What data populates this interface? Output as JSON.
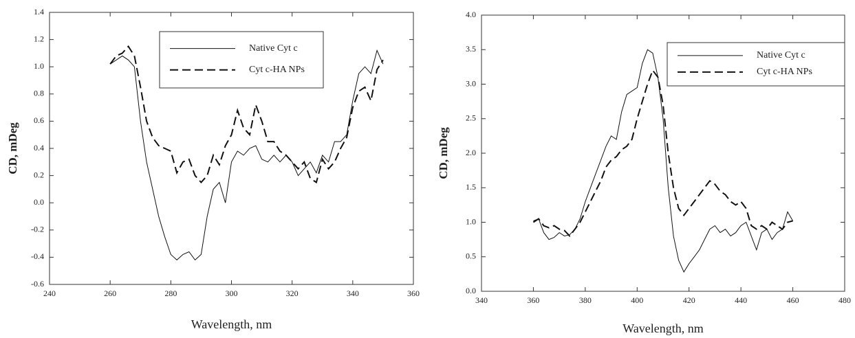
{
  "chart_data": [
    {
      "type": "line",
      "xlabel": "Wavelength, nm",
      "ylabel": "CD, mDeg",
      "xlim": [
        240,
        360
      ],
      "xticks": [
        240,
        260,
        280,
        300,
        320,
        340,
        360
      ],
      "ylim": [
        -0.6,
        1.4
      ],
      "yticks": [
        -0.6,
        -0.4,
        -0.2,
        {
          "value": 0,
          "label": "0.0"
        },
        0.2,
        0.4,
        0.6,
        0.8,
        {
          "value": 1,
          "label": "1.0"
        },
        1.2,
        1.4
      ],
      "x": [
        260,
        262,
        264,
        266,
        268,
        270,
        272,
        274,
        276,
        278,
        280,
        282,
        284,
        286,
        288,
        290,
        292,
        294,
        296,
        298,
        300,
        302,
        304,
        306,
        308,
        310,
        312,
        314,
        316,
        318,
        320,
        322,
        324,
        326,
        328,
        330,
        332,
        334,
        336,
        338,
        340,
        342,
        344,
        346,
        348,
        350
      ],
      "series": [
        {
          "name": "Native Cyt c",
          "color": "#111111",
          "dash": "solid",
          "values": [
            1.02,
            1.05,
            1.08,
            1.05,
            1.0,
            0.6,
            0.3,
            0.1,
            -0.1,
            -0.25,
            -0.38,
            -0.42,
            -0.38,
            -0.36,
            -0.42,
            -0.38,
            -0.1,
            0.1,
            0.15,
            0.0,
            0.3,
            0.38,
            0.35,
            0.4,
            0.42,
            0.32,
            0.3,
            0.35,
            0.3,
            0.35,
            0.3,
            0.2,
            0.25,
            0.3,
            0.22,
            0.35,
            0.3,
            0.45,
            0.45,
            0.5,
            0.75,
            0.95,
            1.0,
            0.95,
            1.12,
            1.02
          ]
        },
        {
          "name": "Cyt c-HA NPs",
          "color": "#111111",
          "dash": "dashed",
          "values": [
            1.02,
            1.08,
            1.1,
            1.15,
            1.08,
            0.85,
            0.6,
            0.48,
            0.42,
            0.4,
            0.38,
            0.22,
            0.3,
            0.32,
            0.2,
            0.15,
            0.2,
            0.35,
            0.28,
            0.42,
            0.5,
            0.68,
            0.55,
            0.5,
            0.72,
            0.6,
            0.45,
            0.45,
            0.38,
            0.35,
            0.3,
            0.25,
            0.3,
            0.18,
            0.15,
            0.32,
            0.25,
            0.3,
            0.4,
            0.48,
            0.7,
            0.82,
            0.85,
            0.75,
            0.98,
            1.05
          ]
        }
      ]
    },
    {
      "type": "line",
      "xlabel": "Wavelength, nm",
      "ylabel": "CD, mDeg",
      "xlim": [
        340,
        480
      ],
      "xticks": [
        340,
        360,
        380,
        400,
        420,
        440,
        460,
        480
      ],
      "ylim": [
        0,
        4
      ],
      "yticks": [
        {
          "value": 0,
          "label": "0.0"
        },
        0.5,
        {
          "value": 1,
          "label": "1.0"
        },
        1.5,
        {
          "value": 2,
          "label": "2.0"
        },
        2.5,
        {
          "value": 3,
          "label": "3.0"
        },
        3.5,
        {
          "value": 4,
          "label": "4.0"
        }
      ],
      "x": [
        360,
        362,
        364,
        366,
        368,
        370,
        372,
        374,
        376,
        378,
        380,
        382,
        384,
        386,
        388,
        390,
        392,
        394,
        396,
        398,
        400,
        402,
        404,
        406,
        408,
        410,
        412,
        414,
        416,
        418,
        420,
        422,
        424,
        426,
        428,
        430,
        432,
        434,
        436,
        438,
        440,
        442,
        444,
        446,
        448,
        450,
        452,
        454,
        456,
        458,
        460
      ],
      "series": [
        {
          "name": "Native Cyt c",
          "color": "#111111",
          "dash": "solid",
          "values": [
            1.02,
            1.05,
            0.85,
            0.75,
            0.78,
            0.85,
            0.8,
            0.82,
            0.9,
            1.05,
            1.3,
            1.5,
            1.7,
            1.9,
            2.1,
            2.25,
            2.2,
            2.6,
            2.85,
            2.9,
            2.95,
            3.3,
            3.5,
            3.45,
            3.1,
            2.5,
            1.5,
            0.8,
            0.45,
            0.28,
            0.4,
            0.5,
            0.6,
            0.75,
            0.9,
            0.95,
            0.85,
            0.9,
            0.8,
            0.85,
            0.95,
            1.0,
            0.8,
            0.6,
            0.85,
            0.9,
            0.75,
            0.85,
            0.9,
            1.15,
            1.02
          ]
        },
        {
          "name": "Cyt c-HA NPs",
          "color": "#111111",
          "dash": "dashed",
          "values": [
            1.0,
            1.05,
            0.95,
            0.92,
            0.95,
            0.9,
            0.88,
            0.8,
            0.9,
            1.0,
            1.15,
            1.3,
            1.45,
            1.6,
            1.8,
            1.9,
            1.95,
            2.05,
            2.1,
            2.2,
            2.5,
            2.75,
            3.0,
            3.2,
            3.1,
            2.7,
            2.0,
            1.5,
            1.2,
            1.1,
            1.2,
            1.3,
            1.4,
            1.5,
            1.6,
            1.55,
            1.45,
            1.4,
            1.3,
            1.25,
            1.3,
            1.2,
            0.95,
            0.9,
            0.95,
            0.9,
            1.0,
            0.95,
            0.9,
            1.0,
            1.02
          ]
        }
      ]
    }
  ]
}
